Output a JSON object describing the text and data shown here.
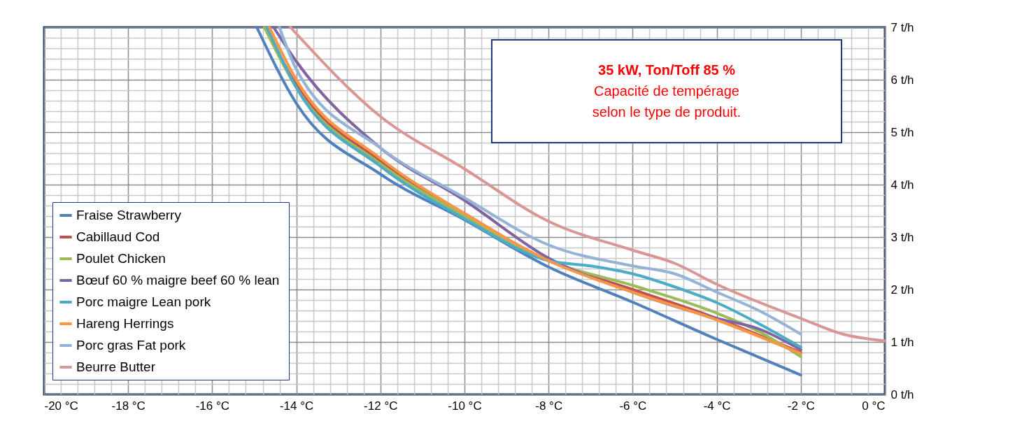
{
  "chart_data": {
    "type": "line",
    "series": [
      {
        "name": "Fraise Strawberry",
        "color": "#4f81bd",
        "x": [
          -14.94,
          -14,
          -12,
          -10,
          -8,
          -6,
          -4,
          -2
        ],
        "values": [
          7,
          5.55,
          4.2,
          3.33,
          2.43,
          1.76,
          1.05,
          0.37
        ]
      },
      {
        "name": "Cabillaud Cod",
        "color": "#c0504d",
        "x": [
          -14.74,
          -14,
          -12,
          -10,
          -8,
          -6,
          -4,
          -2
        ],
        "values": [
          7,
          5.9,
          4.45,
          3.45,
          2.55,
          2.0,
          1.45,
          0.8
        ]
      },
      {
        "name": "Poulet Chicken",
        "color": "#9bbb59",
        "x": [
          -14.76,
          -14,
          -12,
          -10,
          -8,
          -6,
          -4,
          -3,
          -2
        ],
        "values": [
          7,
          5.85,
          4.4,
          3.4,
          2.55,
          2.08,
          1.55,
          1.2,
          0.72
        ]
      },
      {
        "name": "Bœuf 60 % maigre  beef 60 % lean",
        "color": "#8064a2",
        "x": [
          -14.54,
          -14,
          -12,
          -10,
          -8,
          -6,
          -4,
          -3,
          -2
        ],
        "values": [
          7,
          6.35,
          4.7,
          3.7,
          2.6,
          1.95,
          1.45,
          1.25,
          0.85
        ]
      },
      {
        "name": "Porc maigre Lean pork",
        "color": "#4bacc6",
        "x": [
          -14.7,
          -14,
          -12,
          -10,
          -8,
          -7,
          -6,
          -5,
          -4,
          -3,
          -2
        ],
        "values": [
          7,
          5.85,
          4.35,
          3.35,
          2.55,
          2.45,
          2.3,
          2.05,
          1.75,
          1.35,
          0.9
        ]
      },
      {
        "name": "Hareng Herrings",
        "color": "#f79646",
        "x": [
          -14.64,
          -14,
          -12,
          -10,
          -8,
          -6,
          -4,
          -2
        ],
        "values": [
          7,
          6.0,
          4.5,
          3.45,
          2.55,
          1.95,
          1.42,
          0.78
        ]
      },
      {
        "name": "Porc gras Fat pork",
        "color": "#95b3d7",
        "x": [
          -14.4,
          -14,
          -12,
          -10,
          -8,
          -6,
          -5,
          -4,
          -3,
          -2
        ],
        "values": [
          7,
          6.2,
          4.7,
          3.75,
          2.85,
          2.45,
          2.3,
          1.95,
          1.6,
          1.15
        ]
      },
      {
        "name": "Beurre Butter",
        "color": "#d99694",
        "x": [
          -14.14,
          -12,
          -10,
          -8,
          -6,
          -5,
          -4,
          -2,
          -1,
          0
        ],
        "values": [
          7,
          5.3,
          4.3,
          3.3,
          2.75,
          2.5,
          2.1,
          1.45,
          1.15,
          1.02
        ]
      }
    ],
    "xlim": [
      -20,
      0
    ],
    "ylim": [
      0,
      7
    ],
    "xticks": [
      {
        "value": -20,
        "label": "-20 °C"
      },
      {
        "value": -18,
        "label": "-18 °C"
      },
      {
        "value": -16,
        "label": "-16 °C"
      },
      {
        "value": -14,
        "label": "-14 °C"
      },
      {
        "value": -12,
        "label": "-12 °C"
      },
      {
        "value": -10,
        "label": "-10 °C"
      },
      {
        "value": -8,
        "label": "-8 °C"
      },
      {
        "value": -6,
        "label": "-6 °C"
      },
      {
        "value": -4,
        "label": "-4 °C"
      },
      {
        "value": -2,
        "label": "-2 °C"
      },
      {
        "value": 0,
        "label": "0 °C"
      }
    ],
    "yticks": [
      {
        "value": 0,
        "label": "0 t/h"
      },
      {
        "value": 1,
        "label": "1 t/h"
      },
      {
        "value": 2,
        "label": "2 t/h"
      },
      {
        "value": 3,
        "label": "3 t/h"
      },
      {
        "value": 4,
        "label": "4 t/h"
      },
      {
        "value": 5,
        "label": "5 t/h"
      },
      {
        "value": 6,
        "label": "6 t/h"
      },
      {
        "value": 7,
        "label": "7 t/h"
      }
    ],
    "annotations": [
      "35 kW,  Ton/Toff 85 %",
      "Capacité de tempérage",
      "selon le type de produit."
    ],
    "grid": true,
    "legend": "bottom left",
    "marker": "none",
    "line_style": "solid"
  }
}
